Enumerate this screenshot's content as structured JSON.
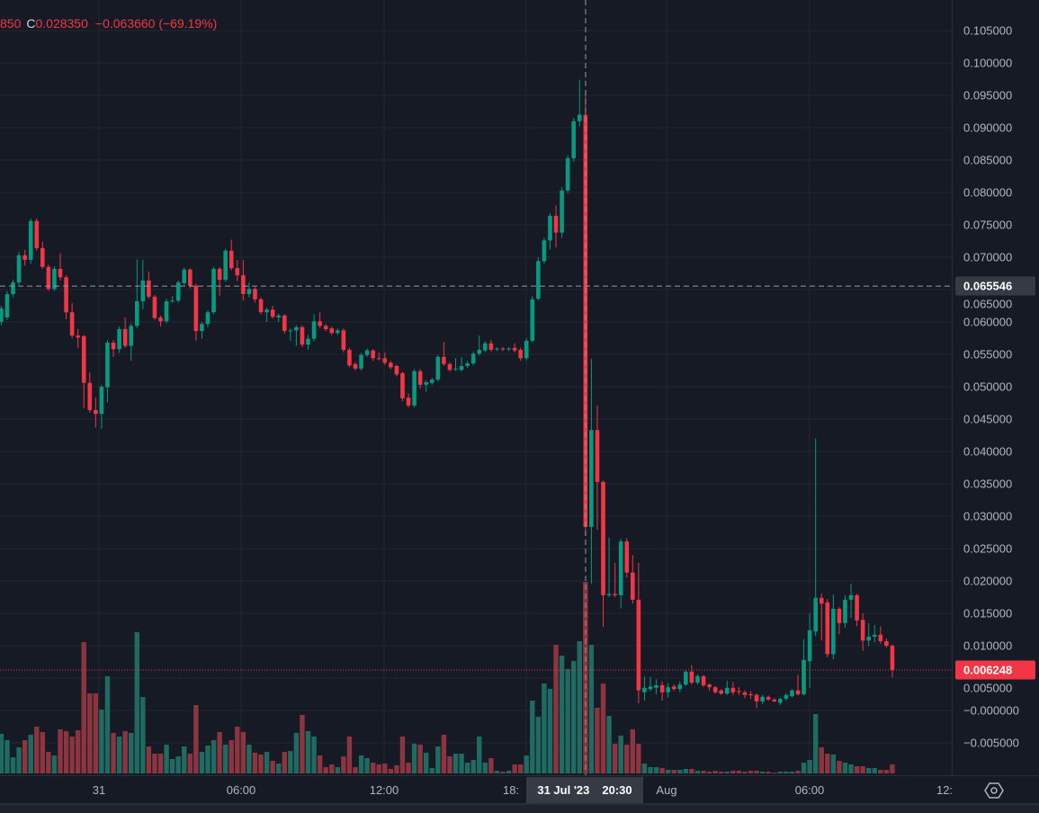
{
  "legend": {
    "low_partial": "850",
    "close_label": "C",
    "close": "0.028350",
    "change": "−0.063660 (−69.19%)"
  },
  "crosshair": {
    "price": "0.065546",
    "date": "31 Jul '23",
    "time": "20:30"
  },
  "last_price": {
    "value": "0.006248",
    "color": "#f23645"
  },
  "time_axis": {
    "labels": [
      "31",
      "06:00",
      "12:00",
      "18:",
      "Aug",
      "06:00",
      "12:"
    ]
  },
  "settings_icon": "gear-icon",
  "colors": {
    "up": "#089981",
    "down": "#f23645",
    "volume_up": "#1f6b62",
    "volume_down": "#8c3440",
    "background": "#161a25",
    "grid": "#222631"
  },
  "chart_data": {
    "type": "candlestick",
    "interval": "15m",
    "ylim": [
      -0.0075,
      0.1075
    ],
    "grid": true,
    "y_ticks": [
      "0.105000",
      "0.100000",
      "0.095000",
      "0.090000",
      "0.085000",
      "0.080000",
      "0.075000",
      "0.070000",
      "0.065000",
      "0.060000",
      "0.055000",
      "0.050000",
      "0.045000",
      "0.040000",
      "0.035000",
      "0.030000",
      "0.025000",
      "0.020000",
      "0.015000",
      "0.010000",
      "0.005000",
      "−0.000000",
      "−0.005000"
    ],
    "y_tick_values": [
      0.105,
      0.1,
      0.095,
      0.09,
      0.085,
      0.08,
      0.075,
      0.07,
      0.065,
      0.06,
      0.055,
      0.05,
      0.045,
      0.04,
      0.035,
      0.03,
      0.025,
      0.02,
      0.015,
      0.01,
      0.005,
      0,
      -0.005
    ],
    "ohlc": [
      [
        0.06,
        0.0625,
        0.0595,
        0.0621
      ],
      [
        0.0607,
        0.0648,
        0.0603,
        0.0643
      ],
      [
        0.0643,
        0.0665,
        0.0638,
        0.0661
      ],
      [
        0.0661,
        0.0708,
        0.0657,
        0.0703
      ],
      [
        0.0703,
        0.0711,
        0.0687,
        0.0696
      ],
      [
        0.0696,
        0.076,
        0.069,
        0.0756
      ],
      [
        0.0756,
        0.076,
        0.071,
        0.0714
      ],
      [
        0.0714,
        0.0724,
        0.0682,
        0.0685
      ],
      [
        0.0685,
        0.0688,
        0.0648,
        0.0651
      ],
      [
        0.0651,
        0.0686,
        0.0648,
        0.0682
      ],
      [
        0.0682,
        0.0706,
        0.0664,
        0.0669
      ],
      [
        0.0669,
        0.0672,
        0.0604,
        0.0615
      ],
      [
        0.0615,
        0.0629,
        0.0575,
        0.0579
      ],
      [
        0.0579,
        0.0589,
        0.056,
        0.0576
      ],
      [
        0.0578,
        0.058,
        0.0467,
        0.0506
      ],
      [
        0.0506,
        0.0522,
        0.046,
        0.0464
      ],
      [
        0.0464,
        0.0483,
        0.0437,
        0.0458
      ],
      [
        0.0458,
        0.0503,
        0.0435,
        0.05
      ],
      [
        0.0499,
        0.0572,
        0.0476,
        0.0568
      ],
      [
        0.0568,
        0.0572,
        0.0546,
        0.0558
      ],
      [
        0.0558,
        0.0593,
        0.0552,
        0.0589
      ],
      [
        0.0589,
        0.0607,
        0.056,
        0.0563
      ],
      [
        0.0563,
        0.0598,
        0.054,
        0.0594
      ],
      [
        0.0594,
        0.0697,
        0.059,
        0.0632
      ],
      [
        0.0632,
        0.0696,
        0.062,
        0.0664
      ],
      [
        0.0664,
        0.0678,
        0.0636,
        0.0639
      ],
      [
        0.0639,
        0.0642,
        0.0603,
        0.0606
      ],
      [
        0.0607,
        0.061,
        0.0593,
        0.0601
      ],
      [
        0.0601,
        0.0636,
        0.0598,
        0.0632
      ],
      [
        0.0632,
        0.064,
        0.063,
        0.0633
      ],
      [
        0.0633,
        0.0664,
        0.063,
        0.0661
      ],
      [
        0.066,
        0.0684,
        0.0657,
        0.0681
      ],
      [
        0.0681,
        0.0683,
        0.0652,
        0.0656
      ],
      [
        0.0656,
        0.0659,
        0.0571,
        0.0586
      ],
      [
        0.0586,
        0.06,
        0.0574,
        0.0597
      ],
      [
        0.0597,
        0.0618,
        0.0592,
        0.0615
      ],
      [
        0.0615,
        0.0685,
        0.0612,
        0.0682
      ],
      [
        0.0682,
        0.0685,
        0.064,
        0.0665
      ],
      [
        0.0665,
        0.0713,
        0.0662,
        0.071
      ],
      [
        0.071,
        0.0727,
        0.068,
        0.0683
      ],
      [
        0.0683,
        0.0696,
        0.0663,
        0.0672
      ],
      [
        0.0672,
        0.0696,
        0.0633,
        0.0643
      ],
      [
        0.0643,
        0.0661,
        0.0638,
        0.0651
      ],
      [
        0.0651,
        0.0654,
        0.063,
        0.0635
      ],
      [
        0.0635,
        0.0638,
        0.0612,
        0.0615
      ],
      [
        0.0615,
        0.0622,
        0.06,
        0.0619
      ],
      [
        0.0619,
        0.0625,
        0.0605,
        0.0608
      ],
      [
        0.0607,
        0.0613,
        0.06,
        0.061
      ],
      [
        0.061,
        0.0612,
        0.0582,
        0.0586
      ],
      [
        0.0586,
        0.059,
        0.0571,
        0.0587
      ],
      [
        0.0587,
        0.0595,
        0.0563,
        0.0592
      ],
      [
        0.0592,
        0.0595,
        0.0561,
        0.0565
      ],
      [
        0.0565,
        0.058,
        0.0557,
        0.0574
      ],
      [
        0.0574,
        0.0612,
        0.057,
        0.0601
      ],
      [
        0.0601,
        0.0615,
        0.059,
        0.0594
      ],
      [
        0.0594,
        0.0597,
        0.0586,
        0.0589
      ],
      [
        0.059,
        0.0593,
        0.058,
        0.0583
      ],
      [
        0.0583,
        0.059,
        0.058,
        0.0587
      ],
      [
        0.0587,
        0.059,
        0.0553,
        0.0557
      ],
      [
        0.0557,
        0.056,
        0.053,
        0.0533
      ],
      [
        0.0535,
        0.0538,
        0.0525,
        0.0528
      ],
      [
        0.0528,
        0.0552,
        0.0525,
        0.0549
      ],
      [
        0.0549,
        0.0559,
        0.0546,
        0.0556
      ],
      [
        0.0556,
        0.0558,
        0.054,
        0.0544
      ],
      [
        0.0544,
        0.0553,
        0.0541,
        0.0543
      ],
      [
        0.0544,
        0.0553,
        0.0534,
        0.0537
      ],
      [
        0.0537,
        0.054,
        0.0527,
        0.053
      ],
      [
        0.0532,
        0.0534,
        0.0516,
        0.0519
      ],
      [
        0.0521,
        0.0523,
        0.0478,
        0.0482
      ],
      [
        0.0483,
        0.049,
        0.0468,
        0.0471
      ],
      [
        0.0471,
        0.0527,
        0.0468,
        0.0524
      ],
      [
        0.0524,
        0.0527,
        0.0497,
        0.0503
      ],
      [
        0.0503,
        0.051,
        0.0492,
        0.0507
      ],
      [
        0.0506,
        0.0514,
        0.0503,
        0.0511
      ],
      [
        0.0511,
        0.0549,
        0.0508,
        0.0546
      ],
      [
        0.0546,
        0.0569,
        0.0532,
        0.0535
      ],
      [
        0.0535,
        0.0538,
        0.0523,
        0.0526
      ],
      [
        0.0527,
        0.0544,
        0.0524,
        0.0528
      ],
      [
        0.0526,
        0.0546,
        0.0523,
        0.0532
      ],
      [
        0.0532,
        0.054,
        0.0529,
        0.0536
      ],
      [
        0.0536,
        0.0554,
        0.0533,
        0.0551
      ],
      [
        0.0551,
        0.0579,
        0.0548,
        0.0557
      ],
      [
        0.0556,
        0.057,
        0.0553,
        0.0567
      ],
      [
        0.0567,
        0.0572,
        0.0554,
        0.0557
      ],
      [
        0.0558,
        0.0561,
        0.0555,
        0.0559
      ],
      [
        0.0559,
        0.0561,
        0.0555,
        0.0558
      ],
      [
        0.0558,
        0.0561,
        0.0555,
        0.0559
      ],
      [
        0.056,
        0.0567,
        0.0553,
        0.0556
      ],
      [
        0.0557,
        0.056,
        0.054,
        0.0544
      ],
      [
        0.0544,
        0.0575,
        0.0541,
        0.0571
      ],
      [
        0.0571,
        0.064,
        0.0568,
        0.0635
      ],
      [
        0.0636,
        0.07,
        0.0633,
        0.0694
      ],
      [
        0.0694,
        0.073,
        0.069,
        0.0726
      ],
      [
        0.0726,
        0.0768,
        0.0712,
        0.0764
      ],
      [
        0.0764,
        0.078,
        0.0715,
        0.0738
      ],
      [
        0.0738,
        0.0808,
        0.073,
        0.0803
      ],
      [
        0.0803,
        0.0857,
        0.0799,
        0.0853
      ],
      [
        0.0853,
        0.0915,
        0.0848,
        0.091
      ],
      [
        0.091,
        0.0974,
        0.0902,
        0.092
      ],
      [
        0.09201,
        0.0954,
        0.027,
        0.02835
      ],
      [
        0.02835,
        0.0543,
        0.0196,
        0.0433
      ],
      [
        0.0433,
        0.0471,
        0.0279,
        0.0353
      ],
      [
        0.0353,
        0.0355,
        0.0129,
        0.0178
      ],
      [
        0.0178,
        0.0267,
        0.0175,
        0.018
      ],
      [
        0.018,
        0.0228,
        0.0175,
        0.0178
      ],
      [
        0.0178,
        0.0265,
        0.0158,
        0.0261
      ],
      [
        0.0261,
        0.0266,
        0.0205,
        0.0213
      ],
      [
        0.0213,
        0.024,
        0.0165,
        0.0171
      ],
      [
        0.0171,
        0.0228,
        0.0011,
        0.0031
      ],
      [
        0.0028,
        0.0052,
        0.0015,
        0.0035
      ],
      [
        0.0033,
        0.0052,
        0.003,
        0.0037
      ],
      [
        0.0035,
        0.0048,
        0.0025,
        0.0039
      ],
      [
        0.0039,
        0.0045,
        0.0015,
        0.0028
      ],
      [
        0.0028,
        0.0042,
        0.002,
        0.0036
      ],
      [
        0.0037,
        0.004,
        0.003,
        0.0033
      ],
      [
        0.0033,
        0.0045,
        0.0028,
        0.004
      ],
      [
        0.004,
        0.0062,
        0.0038,
        0.006
      ],
      [
        0.006,
        0.007,
        0.004,
        0.0043
      ],
      [
        0.0043,
        0.0056,
        0.004,
        0.0053
      ],
      [
        0.0053,
        0.0055,
        0.0036,
        0.0039
      ],
      [
        0.004,
        0.0042,
        0.003,
        0.0036
      ],
      [
        0.0036,
        0.0038,
        0.0026,
        0.0028
      ],
      [
        0.0031,
        0.0033,
        0.0024,
        0.0026
      ],
      [
        0.0026,
        0.0046,
        0.0024,
        0.0035
      ],
      [
        0.0035,
        0.0044,
        0.0024,
        0.0028
      ],
      [
        0.003,
        0.0036,
        0.0024,
        0.0029
      ],
      [
        0.0028,
        0.0031,
        0.0019,
        0.0024
      ],
      [
        0.0025,
        0.003,
        0.0018,
        0.0024
      ],
      [
        0.0024,
        0.0026,
        0.0004,
        0.0014
      ],
      [
        0.0014,
        0.0024,
        0.001,
        0.0021
      ],
      [
        0.0021,
        0.0023,
        0.0015,
        0.0017
      ],
      [
        0.0017,
        0.0019,
        0.0013,
        0.0014
      ],
      [
        0.0012,
        0.002,
        0.0008,
        0.0018
      ],
      [
        0.0018,
        0.0027,
        0.0015,
        0.0024
      ],
      [
        0.0022,
        0.0033,
        0.002,
        0.0031
      ],
      [
        0.0031,
        0.0055,
        0.0023,
        0.0025
      ],
      [
        0.0025,
        0.011,
        0.0023,
        0.0078
      ],
      [
        0.0076,
        0.015,
        0.0035,
        0.0124
      ],
      [
        0.0122,
        0.042,
        0.0115,
        0.0174
      ],
      [
        0.0174,
        0.0181,
        0.0108,
        0.0165
      ],
      [
        0.0167,
        0.0172,
        0.0082,
        0.0087
      ],
      [
        0.0087,
        0.0179,
        0.0079,
        0.0157
      ],
      [
        0.0157,
        0.016,
        0.0118,
        0.0135
      ],
      [
        0.0135,
        0.0178,
        0.0128,
        0.0171
      ],
      [
        0.0171,
        0.0196,
        0.0143,
        0.0178
      ],
      [
        0.0178,
        0.018,
        0.013,
        0.0139
      ],
      [
        0.014,
        0.015,
        0.0092,
        0.0108
      ],
      [
        0.0108,
        0.0135,
        0.01,
        0.0114
      ],
      [
        0.0114,
        0.0132,
        0.0105,
        0.0117
      ],
      [
        0.0117,
        0.013,
        0.0103,
        0.0107
      ],
      [
        0.0107,
        0.0111,
        0.0097,
        0.01
      ],
      [
        0.01,
        0.0102,
        0.0051,
        0.006248
      ]
    ],
    "volume_relative": [
      44,
      37,
      18,
      29,
      37,
      43,
      52,
      46,
      24,
      20,
      49,
      47,
      41,
      48,
      146,
      89,
      89,
      71,
      108,
      45,
      41,
      47,
      45,
      157,
      85,
      30,
      22,
      22,
      32,
      16,
      19,
      30,
      22,
      76,
      24,
      31,
      37,
      46,
      32,
      37,
      52,
      46,
      32,
      23,
      21,
      24,
      14,
      11,
      24,
      25,
      45,
      65,
      47,
      41,
      20,
      7,
      10,
      7,
      19,
      41,
      7,
      20,
      17,
      12,
      10,
      11,
      5,
      9,
      41,
      12,
      33,
      32,
      23,
      6,
      30,
      43,
      19,
      22,
      22,
      12,
      15,
      41,
      12,
      17,
      3,
      2,
      3,
      10,
      10,
      20,
      81,
      63,
      100,
      94,
      143,
      131,
      116,
      125,
      147,
      213,
      143,
      73,
      100,
      64,
      33,
      42,
      32,
      49,
      33,
      11,
      7,
      7,
      6,
      4,
      4,
      4,
      5,
      5,
      3,
      3,
      2,
      3,
      2,
      2,
      3,
      3,
      2,
      3,
      3,
      2,
      2,
      1,
      2,
      2,
      2,
      3,
      12,
      15,
      66,
      29,
      22,
      21,
      14,
      12,
      10,
      8,
      8,
      6,
      6,
      4,
      4,
      10
    ]
  }
}
